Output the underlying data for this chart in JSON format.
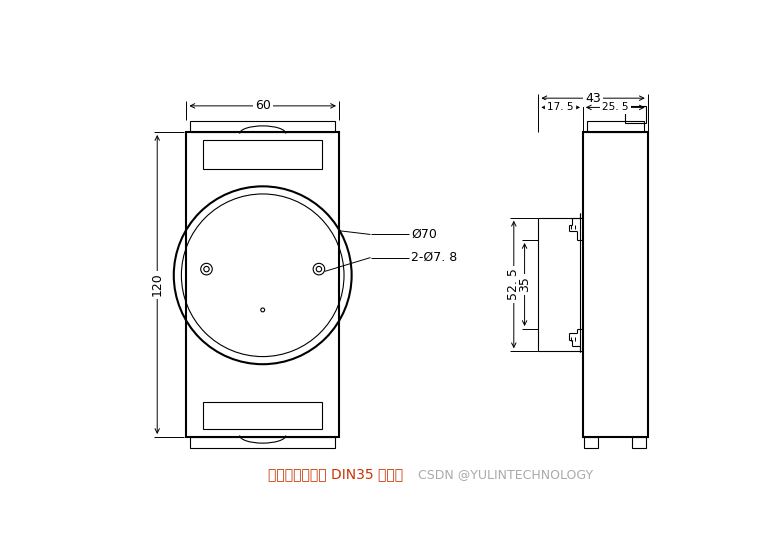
{
  "bg_color": "#ffffff",
  "line_color": "#000000",
  "text_color_red": "#cc3300",
  "text_color_gray": "#aaaaaa",
  "bottom_text1": "可以安装在标准 DIN35 导轨上",
  "bottom_text2": "CSDN @YULINTECHNOLOGY",
  "dim_60": "60",
  "dim_120": "120",
  "dim_43": "43",
  "dim_17_5": "17. 5",
  "dim_25_5": "25. 5",
  "dim_52_5": "52. 5",
  "dim_35": "35",
  "dim_phi70": "Ø70",
  "dim_phi78": "2-Ø7. 8"
}
